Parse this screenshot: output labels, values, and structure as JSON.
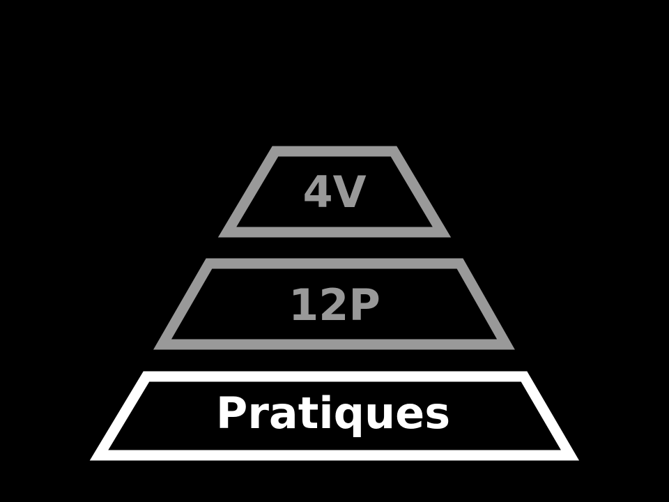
{
  "background_color": "#000000",
  "pyramid": {
    "tiers": [
      {
        "label": "4V",
        "color": "#999999",
        "level": "top"
      },
      {
        "label": "12P",
        "color": "#999999",
        "level": "middle"
      },
      {
        "label": "Pratiques",
        "color": "#ffffff",
        "level": "bottom"
      }
    ]
  }
}
